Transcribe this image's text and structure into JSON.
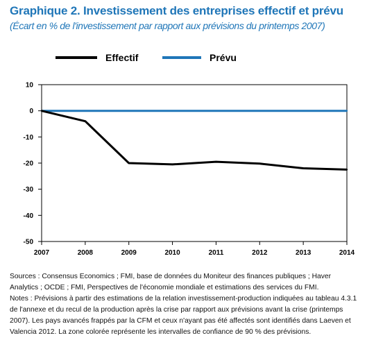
{
  "header": {
    "title": "Graphique 2. Investissement des entreprises effectif et prévu",
    "subtitle": "(Écart en % de l'investissement par rapport aux prévisions du printemps 2007)"
  },
  "colors": {
    "title": "#1f76b8",
    "effectif": "#000000",
    "prevu": "#1f76b8"
  },
  "chart_data": {
    "type": "line",
    "title": "",
    "xlabel": "",
    "ylabel": "",
    "x": [
      "2007",
      "2008",
      "2009",
      "2010",
      "2011",
      "2012",
      "2013",
      "2014"
    ],
    "series": [
      {
        "name": "Effectif",
        "color": "#000000",
        "values": [
          0,
          -4,
          -20,
          -20.5,
          -19.5,
          -20.2,
          -22,
          -22.5
        ]
      },
      {
        "name": "Prévu",
        "color": "#1f76b8",
        "values": [
          0,
          0,
          0,
          0,
          0,
          0,
          0,
          0
        ]
      }
    ],
    "ylim": [
      -50,
      10
    ],
    "yticks": [
      "10",
      "0",
      "-10",
      "-20",
      "-30",
      "-40",
      "-50"
    ],
    "grid": false,
    "legend_position": "top"
  },
  "notes": {
    "sources": "Sources : Consensus Economics ; FMI, base de données du Moniteur des finances publiques ; Haver Analytics ; OCDE ; FMI, Perspectives de l'économie mondiale et estimations des services du FMI.",
    "notes": "Notes : Prévisions à partir des estimations de la relation investissement-production indiquées au tableau 4.3.1 de l'annexe et du recul de la production après la crise par rapport aux prévisions avant la crise (printemps 2007). Les pays avancés frappés par la CFM et ceux n'ayant pas été affectés sont identifiés dans Laeven et Valencia 2012. La zone colorée représente les intervalles de confiance de 90 % des prévisions."
  }
}
